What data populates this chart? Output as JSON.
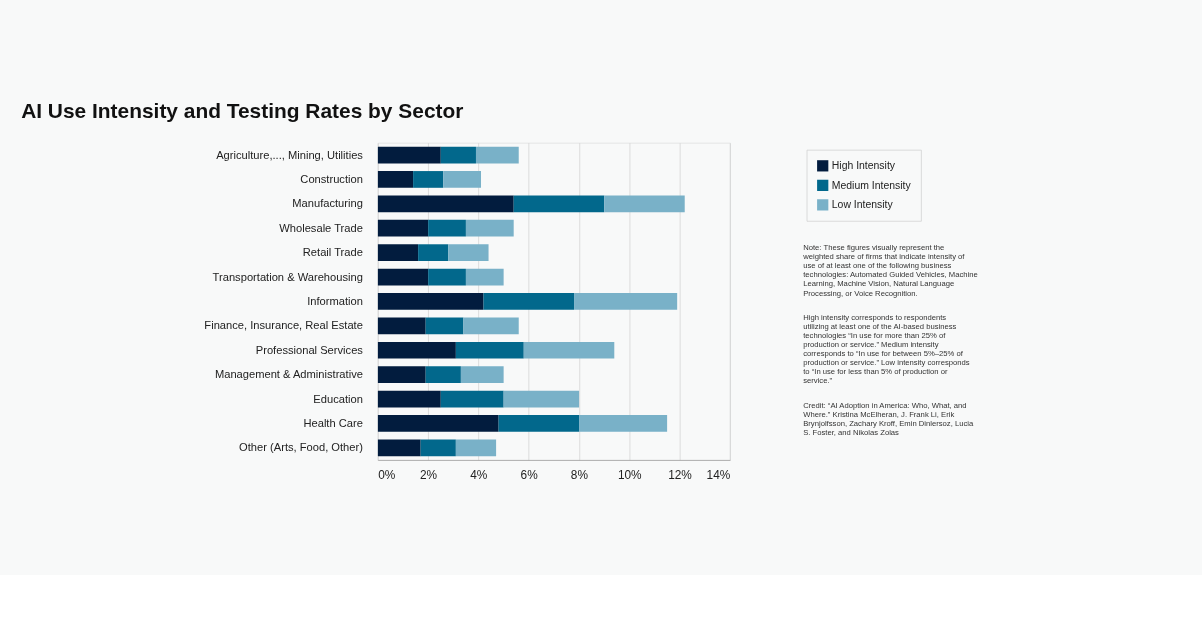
{
  "chart_data": {
    "type": "bar",
    "orientation": "horizontal",
    "stacked": true,
    "title": "AI Use Intensity and Testing Rates by Sector",
    "categories": [
      "Agriculture,..., Mining, Utilities",
      "Construction",
      "Manufacturing",
      "Wholesale Trade",
      "Retail Trade",
      "Transportation & Warehousing",
      "Information",
      "Finance, Insurance, Real Estate",
      "Professional Services",
      "Management & Administrative",
      "Education",
      "Health Care",
      "Other (Arts, Food, Other)"
    ],
    "series": [
      {
        "name": "High Intensity",
        "color": "#021c3e",
        "values": [
          2.5,
          1.4,
          5.4,
          2.0,
          1.6,
          2.0,
          4.2,
          1.9,
          3.1,
          1.9,
          2.5,
          4.8,
          1.7
        ]
      },
      {
        "name": "Medium Intensity",
        "color": "#02688c",
        "values": [
          1.4,
          1.2,
          3.6,
          1.5,
          1.2,
          1.5,
          3.6,
          1.5,
          2.7,
          1.4,
          2.5,
          3.2,
          1.4
        ]
      },
      {
        "name": "Low Intensity",
        "color": "#79b1c8",
        "values": [
          1.7,
          1.5,
          3.2,
          1.9,
          1.6,
          1.5,
          4.1,
          2.2,
          3.6,
          1.7,
          3.0,
          3.5,
          1.6
        ]
      }
    ],
    "xlim": [
      0,
      14
    ],
    "xticks": [
      {
        "value": 0,
        "label": "0%"
      },
      {
        "value": 2,
        "label": "2%"
      },
      {
        "value": 4,
        "label": "4%"
      },
      {
        "value": 6,
        "label": "6%"
      },
      {
        "value": 8,
        "label": "8%"
      },
      {
        "value": 10,
        "label": "10%"
      },
      {
        "value": 12,
        "label": "12%"
      },
      {
        "value": 14,
        "label": "14%"
      }
    ],
    "grid": "x",
    "legend": "top right",
    "annotations": [
      "Note: These figures visually represent the weighted share of firms that indicate intensity of use of at least one of the following business technologies: Automated Guided Vehicles, Machine Learning, Machine Vision, Natural Language Processing, or Voice Recognition.",
      "High intensity corresponds to respondents utilizing at least one of the AI-based business technologies “In use for more than 25% of production or service.” Medium intensity corresponds to “In use for between 5%–25% of production or service.” Low intensity corresponds to “In use for less than 5% of production or service.”",
      "Credit: “AI Adoption in America: Who, What, and Where.” Kristina McElheran, J. Frank Li, Erik Brynjolfsson, Zachary Kroff, Emin Dinlersoz, Lucia S. Foster, and Nikolas Zolas"
    ]
  }
}
